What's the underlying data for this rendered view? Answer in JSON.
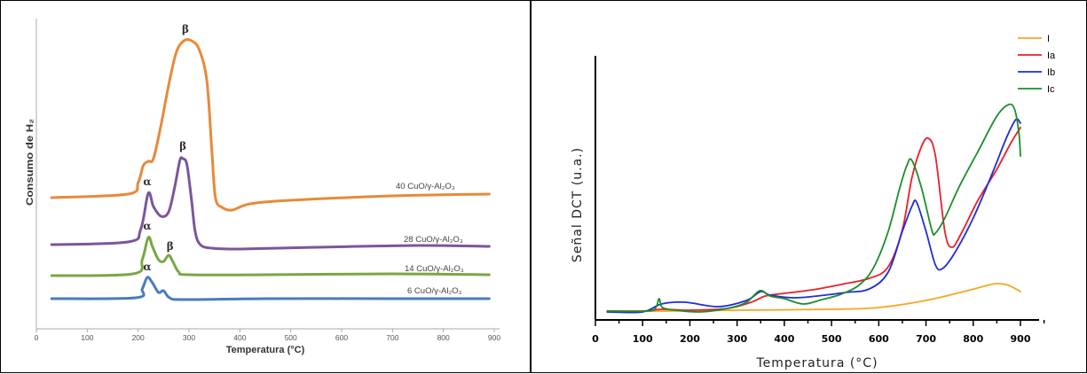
{
  "chart_data": [
    {
      "type": "line",
      "title": "",
      "xlabel": "Temperatura  (°C)",
      "ylabel": "Consumo de H₂",
      "xlim": [
        0,
        900
      ],
      "xticks": [
        "0",
        "100",
        "200",
        "300",
        "400",
        "500",
        "600",
        "700",
        "800",
        "900"
      ],
      "grid": false,
      "series": [
        {
          "name": "40 CuO/γ-Al₂O₃",
          "color": "#E8893A",
          "points": [
            [
              30,
              222
            ],
            [
              180,
              218
            ],
            [
              200,
              205
            ],
            [
              210,
              186
            ],
            [
              220,
              181
            ],
            [
              230,
              178
            ],
            [
              245,
              140
            ],
            [
              260,
              95
            ],
            [
              275,
              58
            ],
            [
              290,
              45
            ],
            [
              305,
              45
            ],
            [
              320,
              55
            ],
            [
              335,
              90
            ],
            [
              345,
              170
            ],
            [
              352,
              222
            ],
            [
              365,
              233
            ],
            [
              385,
              236
            ],
            [
              420,
              229
            ],
            [
              500,
              225
            ],
            [
              700,
              220
            ],
            [
              890,
              218
            ]
          ],
          "peak_labels": [
            {
              "text": "β",
              "x": 293,
              "y": 36
            }
          ]
        },
        {
          "name": "28 CuO/γ-Al₂O₃",
          "color": "#7B569C",
          "points": [
            [
              30,
              275
            ],
            [
              180,
              272
            ],
            [
              205,
              258
            ],
            [
              220,
              217
            ],
            [
              230,
              232
            ],
            [
              245,
              243
            ],
            [
              260,
              238
            ],
            [
              272,
              210
            ],
            [
              282,
              180
            ],
            [
              288,
              178
            ],
            [
              296,
              185
            ],
            [
              305,
              225
            ],
            [
              312,
              260
            ],
            [
              322,
              275
            ],
            [
              345,
              279
            ],
            [
              400,
              280
            ],
            [
              550,
              278
            ],
            [
              750,
              276
            ],
            [
              890,
              277
            ]
          ],
          "peak_labels": [
            {
              "text": "α",
              "x": 218,
              "y": 208
            },
            {
              "text": "β",
              "x": 288,
              "y": 168
            }
          ]
        },
        {
          "name": "14 CuO/γ-Al₂O₃",
          "color": "#79A743",
          "points": [
            [
              30,
              310
            ],
            [
              190,
              308
            ],
            [
              208,
              292
            ],
            [
              220,
              267
            ],
            [
              228,
              277
            ],
            [
              240,
              292
            ],
            [
              250,
              294
            ],
            [
              260,
              287
            ],
            [
              268,
              294
            ],
            [
              280,
              306
            ],
            [
              300,
              309
            ],
            [
              450,
              309
            ],
            [
              700,
              308
            ],
            [
              890,
              309
            ]
          ],
          "peak_labels": [
            {
              "text": "α",
              "x": 218,
              "y": 258
            },
            {
              "text": "β",
              "x": 263,
              "y": 281
            }
          ]
        },
        {
          "name": "6 CuO/γ-Al₂O₃",
          "color": "#4A7BBE",
          "points": [
            [
              30,
              336
            ],
            [
              195,
              335
            ],
            [
              208,
              325
            ],
            [
              218,
              312
            ],
            [
              228,
              318
            ],
            [
              240,
              329
            ],
            [
              250,
              327
            ],
            [
              262,
              335
            ],
            [
              290,
              337
            ],
            [
              450,
              336
            ],
            [
              700,
              336
            ],
            [
              890,
              336
            ]
          ],
          "peak_labels": [
            {
              "text": "α",
              "x": 218,
              "y": 304
            }
          ]
        }
      ]
    },
    {
      "type": "line",
      "title": "",
      "xlabel": "Temperatura (°C)",
      "ylabel": "Señal DCT (u.a.)",
      "xlim": [
        0,
        900
      ],
      "xticks": [
        "0",
        "100",
        "200",
        "300",
        "400",
        "500",
        "600",
        "700",
        "800",
        "900"
      ],
      "grid": false,
      "legend": "top-right",
      "series": [
        {
          "name": "I",
          "color": "#F5A623",
          "points": [
            [
              25,
              350
            ],
            [
              150,
              350
            ],
            [
              300,
              349
            ],
            [
              500,
              348
            ],
            [
              600,
              346
            ],
            [
              700,
              338
            ],
            [
              780,
              328
            ],
            [
              830,
              321
            ],
            [
              850,
              319
            ],
            [
              875,
              321
            ],
            [
              900,
              328
            ]
          ]
        },
        {
          "name": "Ia",
          "color": "#E8202A",
          "points": [
            [
              25,
              350
            ],
            [
              100,
              350
            ],
            [
              140,
              348
            ],
            [
              200,
              349
            ],
            [
              280,
              347
            ],
            [
              330,
              340
            ],
            [
              360,
              333
            ],
            [
              400,
              330
            ],
            [
              460,
              326
            ],
            [
              520,
              320
            ],
            [
              580,
              313
            ],
            [
              620,
              300
            ],
            [
              650,
              258
            ],
            [
              670,
              200
            ],
            [
              690,
              165
            ],
            [
              705,
              155
            ],
            [
              720,
              175
            ],
            [
              740,
              260
            ],
            [
              755,
              278
            ],
            [
              775,
              262
            ],
            [
              810,
              225
            ],
            [
              850,
              190
            ],
            [
              880,
              160
            ],
            [
              900,
              143
            ]
          ]
        },
        {
          "name": "Ib",
          "color": "#1F2DD8",
          "points": [
            [
              25,
              351
            ],
            [
              100,
              351
            ],
            [
              140,
              342
            ],
            [
              190,
              340
            ],
            [
              260,
              345
            ],
            [
              320,
              338
            ],
            [
              350,
              328
            ],
            [
              370,
              332
            ],
            [
              420,
              335
            ],
            [
              470,
              333
            ],
            [
              530,
              329
            ],
            [
              580,
              325
            ],
            [
              620,
              306
            ],
            [
              650,
              260
            ],
            [
              670,
              232
            ],
            [
              680,
              227
            ],
            [
              700,
              260
            ],
            [
              720,
              298
            ],
            [
              735,
              302
            ],
            [
              760,
              285
            ],
            [
              800,
              245
            ],
            [
              840,
              195
            ],
            [
              870,
              155
            ],
            [
              890,
              134
            ],
            [
              900,
              138
            ]
          ]
        },
        {
          "name": "Ic",
          "color": "#1B8E2A",
          "points": [
            [
              25,
              350
            ],
            [
              110,
              350
            ],
            [
              128,
              346
            ],
            [
              135,
              336
            ],
            [
              142,
              346
            ],
            [
              170,
              349
            ],
            [
              220,
              351
            ],
            [
              280,
              347
            ],
            [
              320,
              340
            ],
            [
              348,
              327
            ],
            [
              370,
              333
            ],
            [
              400,
              336
            ],
            [
              440,
              342
            ],
            [
              480,
              337
            ],
            [
              520,
              331
            ],
            [
              560,
              320
            ],
            [
              590,
              300
            ],
            [
              620,
              260
            ],
            [
              645,
              210
            ],
            [
              660,
              185
            ],
            [
              670,
              180
            ],
            [
              690,
              210
            ],
            [
              712,
              258
            ],
            [
              720,
              262
            ],
            [
              740,
              245
            ],
            [
              770,
              210
            ],
            [
              810,
              170
            ],
            [
              850,
              130
            ],
            [
              875,
              117
            ],
            [
              888,
              123
            ],
            [
              897,
              150
            ],
            [
              900,
              175
            ]
          ]
        }
      ]
    }
  ]
}
